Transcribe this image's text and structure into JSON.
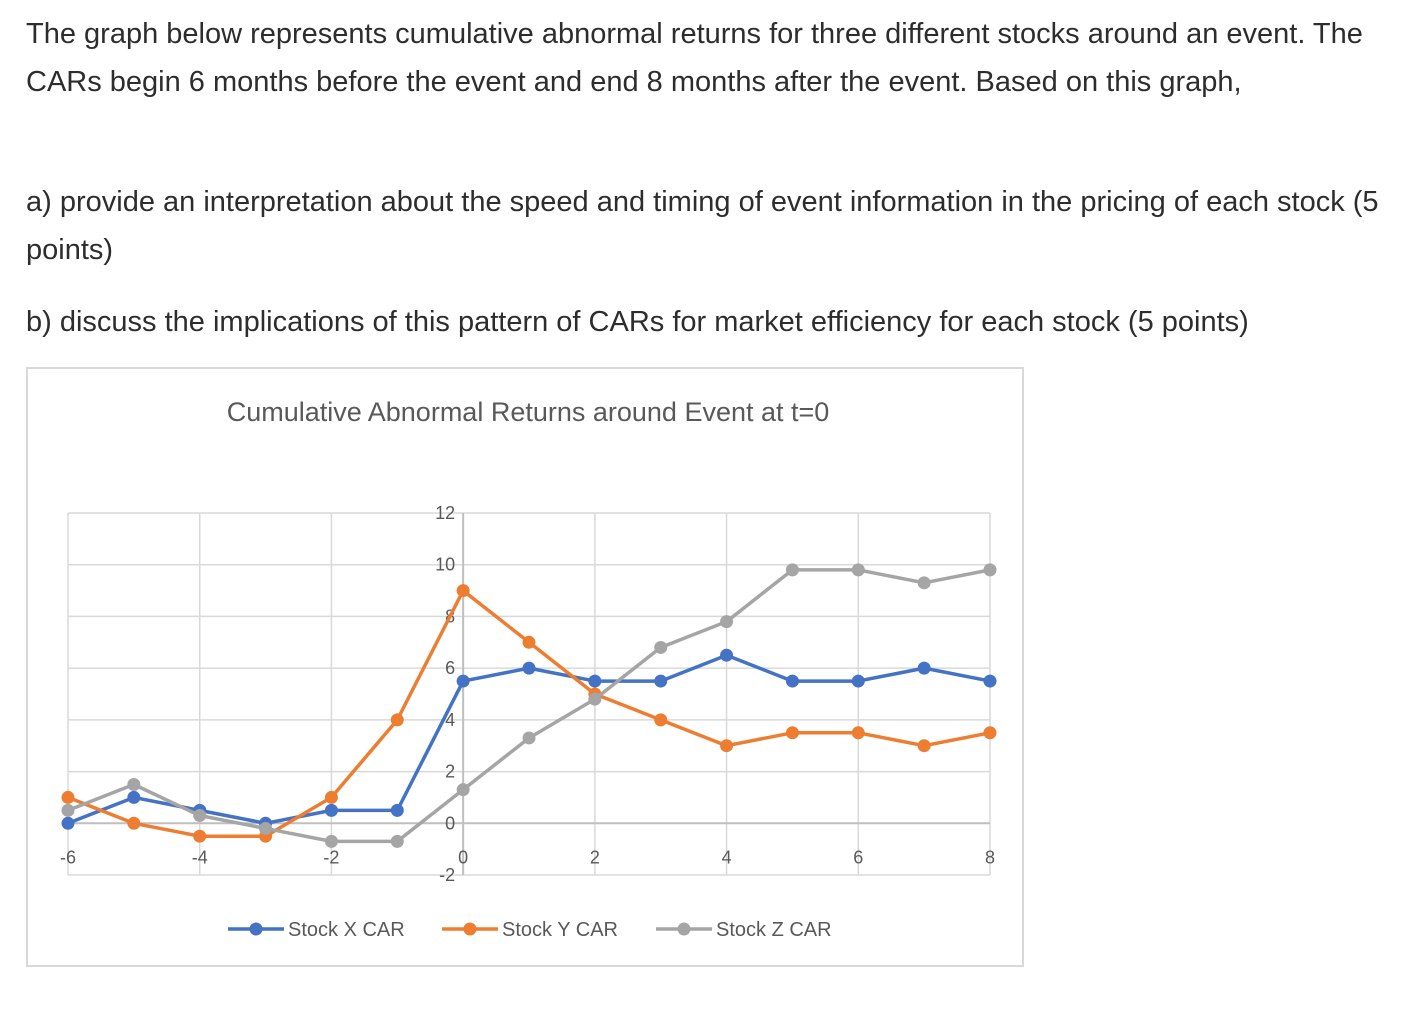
{
  "question": {
    "intro": "The graph below represents cumulative abnormal returns for three different stocks around an event.  The CARs begin 6 months before the event and end 8 months after the event.  Based on this graph,",
    "part_a": "a) provide an interpretation about the speed and timing of event information in the pricing of each stock (5 points)",
    "part_b": "b) discuss the implications of this pattern of CARs for market efficiency for each stock (5 points)"
  },
  "chart_data": {
    "type": "line",
    "title": "Cumulative Abnormal Returns around Event at t=0",
    "xlabel": "",
    "ylabel": "",
    "xlim": [
      -6,
      8
    ],
    "ylim": [
      -2,
      12
    ],
    "x_ticks": [
      "-6",
      "-4",
      "-2",
      "0",
      "2",
      "4",
      "6",
      "8"
    ],
    "y_ticks": [
      "12",
      "10",
      "8",
      "6",
      "4",
      "2",
      "0",
      "-2"
    ],
    "grid": true,
    "legend_position": "bottom",
    "x": [
      -6,
      -5,
      -4,
      -3,
      -2,
      -1,
      0,
      1,
      2,
      3,
      4,
      5,
      6,
      7,
      8
    ],
    "series": [
      {
        "name": "Stock X CAR",
        "color": "#4472c4",
        "values": [
          0,
          1,
          0.5,
          0,
          0.5,
          0.5,
          5.5,
          6,
          5.5,
          5.5,
          6.5,
          5.5,
          5.5,
          6,
          5.5
        ]
      },
      {
        "name": "Stock Y CAR",
        "color": "#ed7d31",
        "values": [
          1,
          0,
          -0.5,
          -0.5,
          1,
          4,
          9,
          7,
          5,
          4,
          3,
          3.5,
          3.5,
          3,
          3.5
        ]
      },
      {
        "name": "Stock Z CAR",
        "color": "#a5a5a5",
        "values": [
          0.5,
          1.5,
          0.3,
          -0.2,
          -0.7,
          -0.7,
          1.3,
          3.3,
          4.8,
          6.8,
          7.8,
          9.8,
          9.8,
          9.3,
          9.8
        ]
      }
    ]
  }
}
